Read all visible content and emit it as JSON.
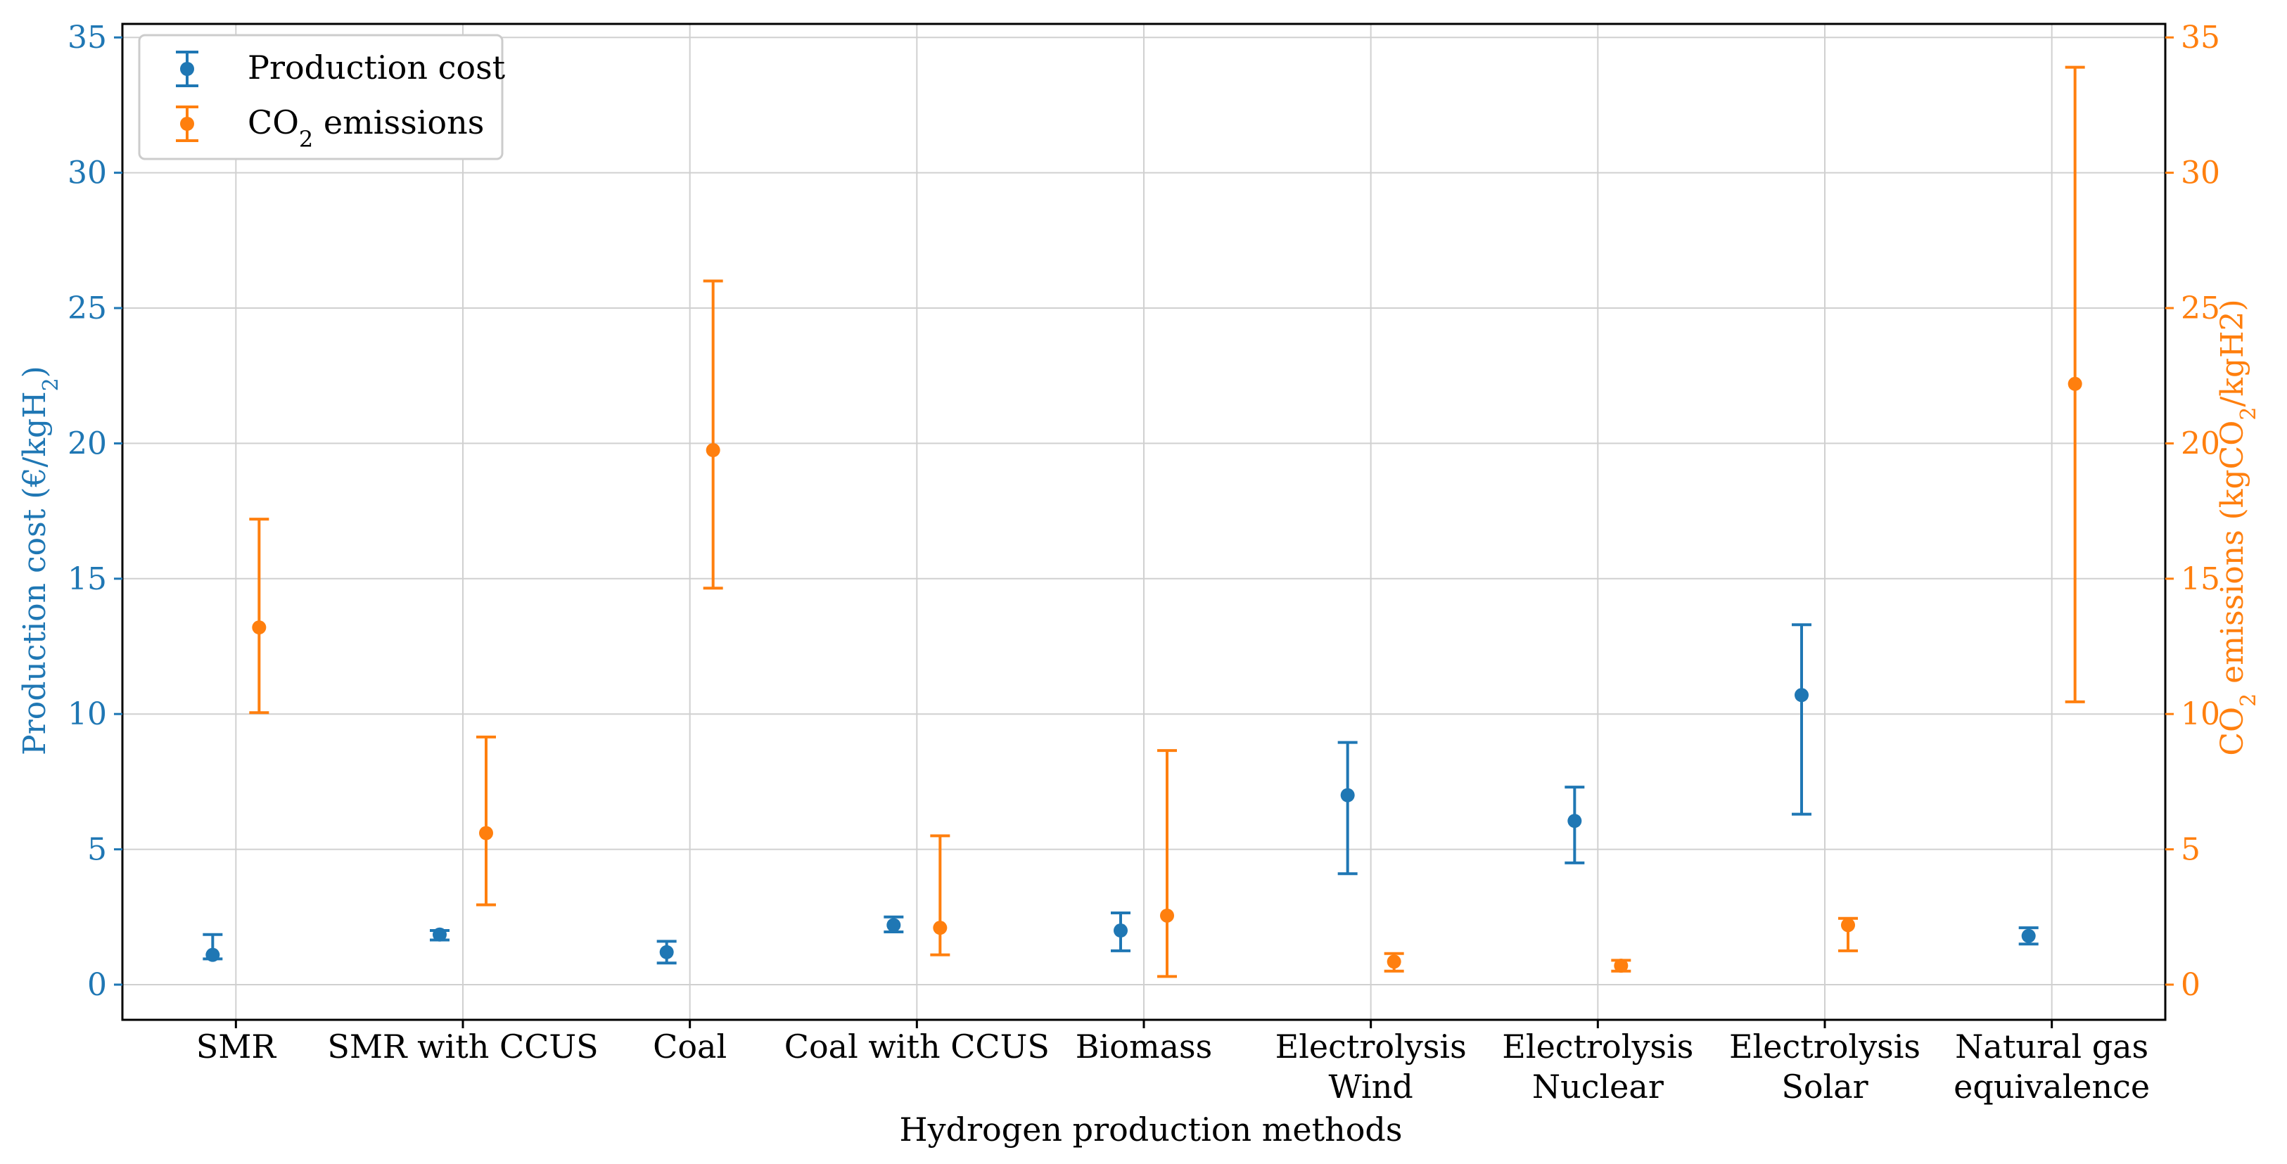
{
  "colors": {
    "cost": "#1f77b4",
    "emissions": "#ff7f0e",
    "grid": "#d0d0d0",
    "axis": "#000000"
  },
  "chart_data": {
    "type": "errorbar",
    "xlabel": "Hydrogen production methods",
    "ylabel_left": "Production cost (€/kgH",
    "ylabel_left_sub": "2",
    "ylabel_left_tail": ")",
    "ylabel_right": "CO",
    "ylabel_right_sub": "2",
    "ylabel_right_tail": " emissions (kgCO",
    "ylabel_right_sub2": "2",
    "ylabel_right_tail2": "/kgH2)",
    "ylim_left": [
      -1.3,
      35.5
    ],
    "ylim_right": [
      -1.3,
      35.5
    ],
    "yticks": [
      0,
      5,
      10,
      15,
      20,
      25,
      30,
      35
    ],
    "grid": true,
    "legend_position": "top-left",
    "categories": [
      [
        "SMR"
      ],
      [
        "SMR with CCUS"
      ],
      [
        "Coal"
      ],
      [
        "Coal with CCUS"
      ],
      [
        "Biomass"
      ],
      [
        "Electrolysis",
        "Wind"
      ],
      [
        "Electrolysis",
        "Nuclear"
      ],
      [
        "Electrolysis",
        "Solar"
      ],
      [
        "Natural gas",
        "equivalence"
      ]
    ],
    "series": [
      {
        "name": "Production cost",
        "axis": "left",
        "points": [
          {
            "value": 1.1,
            "low": 0.95,
            "high": 1.85
          },
          {
            "value": 1.85,
            "low": 1.65,
            "high": 2.0
          },
          {
            "value": 1.2,
            "low": 0.8,
            "high": 1.6
          },
          {
            "value": 2.2,
            "low": 1.95,
            "high": 2.5
          },
          {
            "value": 2.0,
            "low": 1.25,
            "high": 2.65
          },
          {
            "value": 7.0,
            "low": 4.1,
            "high": 8.95
          },
          {
            "value": 6.05,
            "low": 4.5,
            "high": 7.3
          },
          {
            "value": 10.7,
            "low": 6.3,
            "high": 13.3
          },
          {
            "value": 1.8,
            "low": 1.5,
            "high": 2.1
          }
        ]
      },
      {
        "name_main": "CO",
        "name_sub": "2",
        "name_tail": " emissions",
        "axis": "right",
        "points": [
          {
            "value": 13.2,
            "low": 10.05,
            "high": 17.2
          },
          {
            "value": 5.6,
            "low": 2.95,
            "high": 9.15
          },
          {
            "value": 19.75,
            "low": 14.65,
            "high": 26.0
          },
          {
            "value": 2.1,
            "low": 1.1,
            "high": 5.5
          },
          {
            "value": 2.55,
            "low": 0.3,
            "high": 8.65
          },
          {
            "value": 0.85,
            "low": 0.5,
            "high": 1.15
          },
          {
            "value": 0.7,
            "low": 0.5,
            "high": 0.9
          },
          {
            "value": 2.2,
            "low": 1.25,
            "high": 2.45
          },
          {
            "value": 22.2,
            "low": 10.45,
            "high": 33.9
          }
        ]
      }
    ]
  }
}
